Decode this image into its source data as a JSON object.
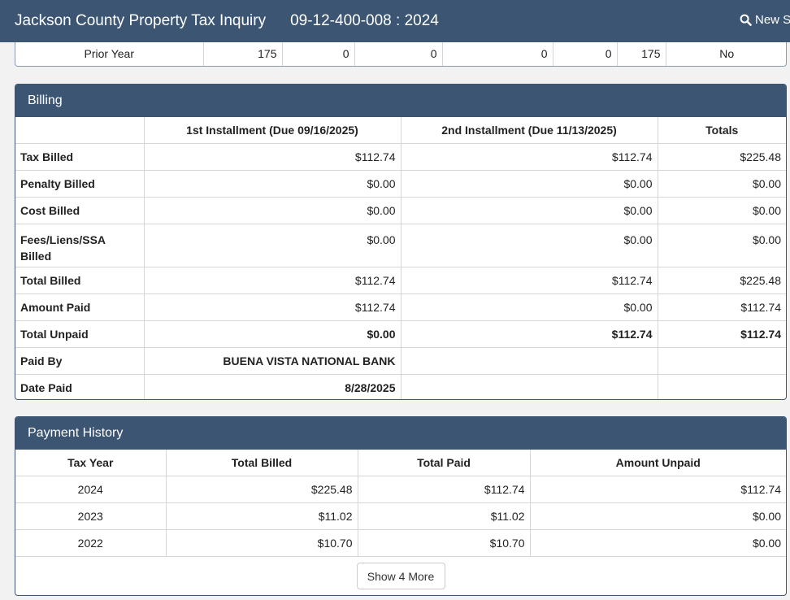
{
  "header": {
    "title": "Jackson County Property Tax Inquiry",
    "parcel": "09-12-400-008 : 2024",
    "new_search_label": "New S"
  },
  "prior_year_row": [
    "Prior Year",
    "175",
    "0",
    "0",
    "0",
    "0",
    "175",
    "No"
  ],
  "billing": {
    "title": "Billing",
    "columns": [
      "",
      "1st Installment (Due 09/16/2025)",
      "2nd Installment (Due 11/13/2025)",
      "Totals"
    ],
    "rows": [
      {
        "label": "Tax Billed",
        "c1": "$112.74",
        "c2": "$112.74",
        "c3": "$225.48"
      },
      {
        "label": "Penalty Billed",
        "c1": "$0.00",
        "c2": "$0.00",
        "c3": "$0.00"
      },
      {
        "label": "Cost Billed",
        "c1": "$0.00",
        "c2": "$0.00",
        "c3": "$0.00"
      },
      {
        "label": "Fees/Liens/SSA Billed",
        "c1": "$0.00",
        "c2": "$0.00",
        "c3": "$0.00"
      },
      {
        "label": "Total Billed",
        "c1": "$112.74",
        "c2": "$112.74",
        "c3": "$225.48"
      },
      {
        "label": "Amount Paid",
        "c1": "$112.74",
        "c2": "$0.00",
        "c3": "$112.74"
      },
      {
        "label": "Total Unpaid",
        "c1": "$0.00",
        "c2": "$112.74",
        "c3": "$112.74"
      },
      {
        "label": "Paid By",
        "c1": "BUENA VISTA NATIONAL BANK",
        "c2": "",
        "c3": ""
      },
      {
        "label": "Date Paid",
        "c1": "8/28/2025",
        "c2": "",
        "c3": ""
      }
    ]
  },
  "history": {
    "title": "Payment History",
    "columns": [
      "Tax Year",
      "Total Billed",
      "Total Paid",
      "Amount Unpaid"
    ],
    "rows": [
      {
        "year": "2024",
        "billed": "$225.48",
        "paid": "$112.74",
        "unpaid": "$112.74"
      },
      {
        "year": "2023",
        "billed": "$11.02",
        "paid": "$11.02",
        "unpaid": "$0.00"
      },
      {
        "year": "2022",
        "billed": "$10.70",
        "paid": "$10.70",
        "unpaid": "$0.00"
      }
    ],
    "more_label": "Show 4 More"
  },
  "colors": {
    "header_bg": "#3b5573",
    "page_bg": "#f2f2f2"
  }
}
